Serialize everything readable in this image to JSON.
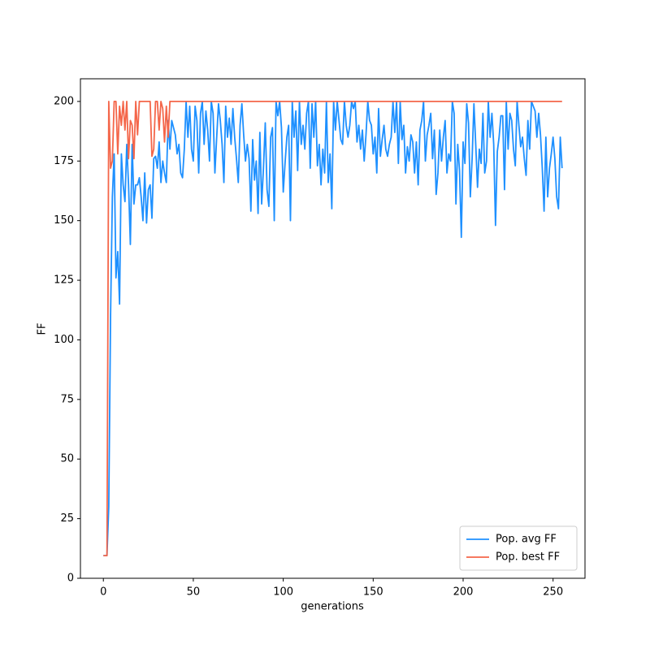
{
  "chart_data": {
    "type": "line",
    "xlabel": "generations",
    "ylabel": "FF",
    "x": [
      0,
      1,
      2,
      3,
      4,
      5,
      6,
      7,
      8,
      9,
      10,
      11,
      12,
      13,
      14,
      15,
      16,
      17,
      18,
      19,
      20,
      21,
      22,
      23,
      24,
      25,
      26,
      27,
      28,
      29,
      30,
      31,
      32,
      33,
      34,
      35,
      36,
      37,
      38,
      39,
      40,
      41,
      42,
      43,
      44,
      45,
      46,
      47,
      48,
      49,
      50,
      51,
      52,
      53,
      54,
      55,
      56,
      57,
      58,
      59,
      60,
      61,
      62,
      63,
      64,
      65,
      66,
      67,
      68,
      69,
      70,
      71,
      72,
      73,
      74,
      75,
      76,
      77,
      78,
      79,
      80,
      81,
      82,
      83,
      84,
      85,
      86,
      87,
      88,
      89,
      90,
      91,
      92,
      93,
      94,
      95,
      96,
      97,
      98,
      99,
      100,
      101,
      102,
      103,
      104,
      105,
      106,
      107,
      108,
      109,
      110,
      111,
      112,
      113,
      114,
      115,
      116,
      117,
      118,
      119,
      120,
      121,
      122,
      123,
      124,
      125,
      126,
      127,
      128,
      129,
      130,
      131,
      132,
      133,
      134,
      135,
      136,
      137,
      138,
      139,
      140,
      141,
      142,
      143,
      144,
      145,
      146,
      147,
      148,
      149,
      150,
      151,
      152,
      153,
      154,
      155,
      156,
      157,
      158,
      159,
      160,
      161,
      162,
      163,
      164,
      165,
      166,
      167,
      168,
      169,
      170,
      171,
      172,
      173,
      174,
      175,
      176,
      177,
      178,
      179,
      180,
      181,
      182,
      183,
      184,
      185,
      186,
      187,
      188,
      189,
      190,
      191,
      192,
      193,
      194,
      195,
      196,
      197,
      198,
      199,
      200,
      201,
      202,
      203,
      204,
      205,
      206,
      207,
      208,
      209,
      210,
      211,
      212,
      213,
      214,
      215,
      216,
      217,
      218,
      219,
      220,
      221,
      222,
      223,
      224,
      225,
      226,
      227,
      228,
      229,
      230,
      231,
      232,
      233,
      234,
      235,
      236,
      237,
      238,
      239,
      240,
      241,
      242,
      243,
      244,
      245,
      246,
      247,
      248,
      249,
      250,
      251,
      252,
      253,
      254,
      255
    ],
    "series": [
      {
        "name": "Pop. avg FF",
        "color": "#1e90ff",
        "values": [
          9.5,
          9.5,
          9.5,
          30,
          110,
          160,
          178,
          126,
          137,
          115,
          178,
          165,
          158,
          182,
          165,
          140,
          182,
          157,
          165,
          165,
          168,
          160,
          150,
          170,
          149,
          163,
          165,
          151,
          176,
          177,
          172,
          183,
          166,
          175,
          170,
          166,
          192,
          180,
          192,
          189,
          186,
          178,
          182,
          170,
          168,
          180,
          200,
          185,
          198,
          180,
          175,
          198,
          192,
          170,
          195,
          200,
          182,
          196,
          188,
          175,
          200,
          195,
          170,
          185,
          199,
          192,
          182,
          166,
          198,
          185,
          193,
          182,
          197,
          185,
          176,
          166,
          190,
          199,
          186,
          175,
          182,
          176,
          154,
          184,
          167,
          175,
          153,
          187,
          157,
          172,
          191,
          163,
          156,
          185,
          189,
          150,
          200,
          194,
          200,
          189,
          162,
          174,
          185,
          190,
          150,
          200,
          185,
          196,
          171,
          200,
          182,
          190,
          180,
          195,
          200,
          172,
          199,
          185,
          200,
          173,
          182,
          165,
          180,
          170,
          200,
          166,
          178,
          155,
          200,
          188,
          200,
          192,
          184,
          182,
          200,
          190,
          185,
          190,
          200,
          197,
          200,
          183,
          190,
          180,
          188,
          175,
          186,
          200,
          192,
          190,
          178,
          185,
          170,
          197,
          177,
          184,
          190,
          180,
          177,
          182,
          185,
          200,
          187,
          200,
          174,
          200,
          184,
          190,
          170,
          181,
          175,
          186,
          183,
          170,
          183,
          165,
          188,
          192,
          200,
          175,
          186,
          190,
          195,
          176,
          188,
          161,
          170,
          188,
          175,
          185,
          192,
          170,
          178,
          175,
          200,
          195,
          157,
          182,
          171,
          143,
          183,
          174,
          199,
          191,
          160,
          176,
          199,
          182,
          164,
          180,
          174,
          195,
          170,
          175,
          200,
          185,
          195,
          182,
          148,
          179,
          185,
          194,
          194,
          163,
          200,
          180,
          195,
          192,
          180,
          173,
          200,
          190,
          181,
          185,
          176,
          169,
          192,
          180,
          200,
          198,
          196,
          185,
          195,
          186,
          172,
          154,
          185,
          160,
          172,
          178,
          185,
          176,
          160,
          155,
          185,
          172
        ]
      },
      {
        "name": "Pop. best FF",
        "color": "#f4664a",
        "values": [
          9.5,
          9.5,
          9.5,
          200,
          172,
          175,
          200,
          200,
          178,
          198,
          190,
          200,
          188,
          200,
          176,
          192,
          190,
          176,
          200,
          186,
          200,
          200,
          200,
          200,
          200,
          200,
          200,
          177,
          180,
          200,
          200,
          188,
          200,
          197,
          183,
          198,
          185,
          200,
          200,
          200,
          200,
          200,
          200,
          200,
          200,
          200,
          200,
          200,
          200,
          200,
          200,
          200,
          200,
          200,
          200,
          200,
          200,
          200,
          200,
          200,
          200,
          200,
          200,
          200,
          200,
          200,
          200,
          200,
          200,
          200,
          200,
          200,
          200,
          200,
          200,
          200,
          200,
          200,
          200,
          200,
          200,
          200,
          200,
          200,
          200,
          200,
          200,
          200,
          200,
          200,
          200,
          200,
          200,
          200,
          200,
          200,
          200,
          200,
          200,
          200,
          200,
          200,
          200,
          200,
          200,
          200,
          200,
          200,
          200,
          200,
          200,
          200,
          200,
          200,
          200,
          200,
          200,
          200,
          200,
          200,
          200,
          200,
          200,
          200,
          200,
          200,
          200,
          200,
          200,
          200,
          200,
          200,
          200,
          200,
          200,
          200,
          200,
          200,
          200,
          200,
          200,
          200,
          200,
          200,
          200,
          200,
          200,
          200,
          200,
          200,
          200,
          200,
          200,
          200,
          200,
          200,
          200,
          200,
          200,
          200,
          200,
          200,
          200,
          200,
          200,
          200,
          200,
          200,
          200,
          200,
          200,
          200,
          200,
          200,
          200,
          200,
          200,
          200,
          200,
          200,
          200,
          200,
          200,
          200,
          200,
          200,
          200,
          200,
          200,
          200,
          200,
          200,
          200,
          200,
          200,
          200,
          200,
          200,
          200,
          200,
          200,
          200,
          200,
          200,
          200,
          200,
          200,
          200,
          200,
          200,
          200,
          200,
          200,
          200,
          200,
          200,
          200,
          200,
          200,
          200,
          200,
          200,
          200,
          200,
          200,
          200,
          200,
          200,
          200,
          200,
          200,
          200,
          200,
          200,
          200,
          200,
          200,
          200,
          200,
          200,
          200,
          200,
          200,
          200,
          200,
          200,
          200,
          200,
          200,
          200,
          200,
          200,
          200,
          200,
          200,
          200
        ]
      }
    ],
    "xlim": [
      -12.75,
      267.75
    ],
    "xticks": [
      0,
      50,
      100,
      150,
      200,
      250
    ],
    "ylim": [
      0,
      209.5
    ],
    "yticks": [
      0,
      25,
      50,
      75,
      100,
      125,
      150,
      175,
      200
    ],
    "legend": "lower right",
    "grid": false
  }
}
